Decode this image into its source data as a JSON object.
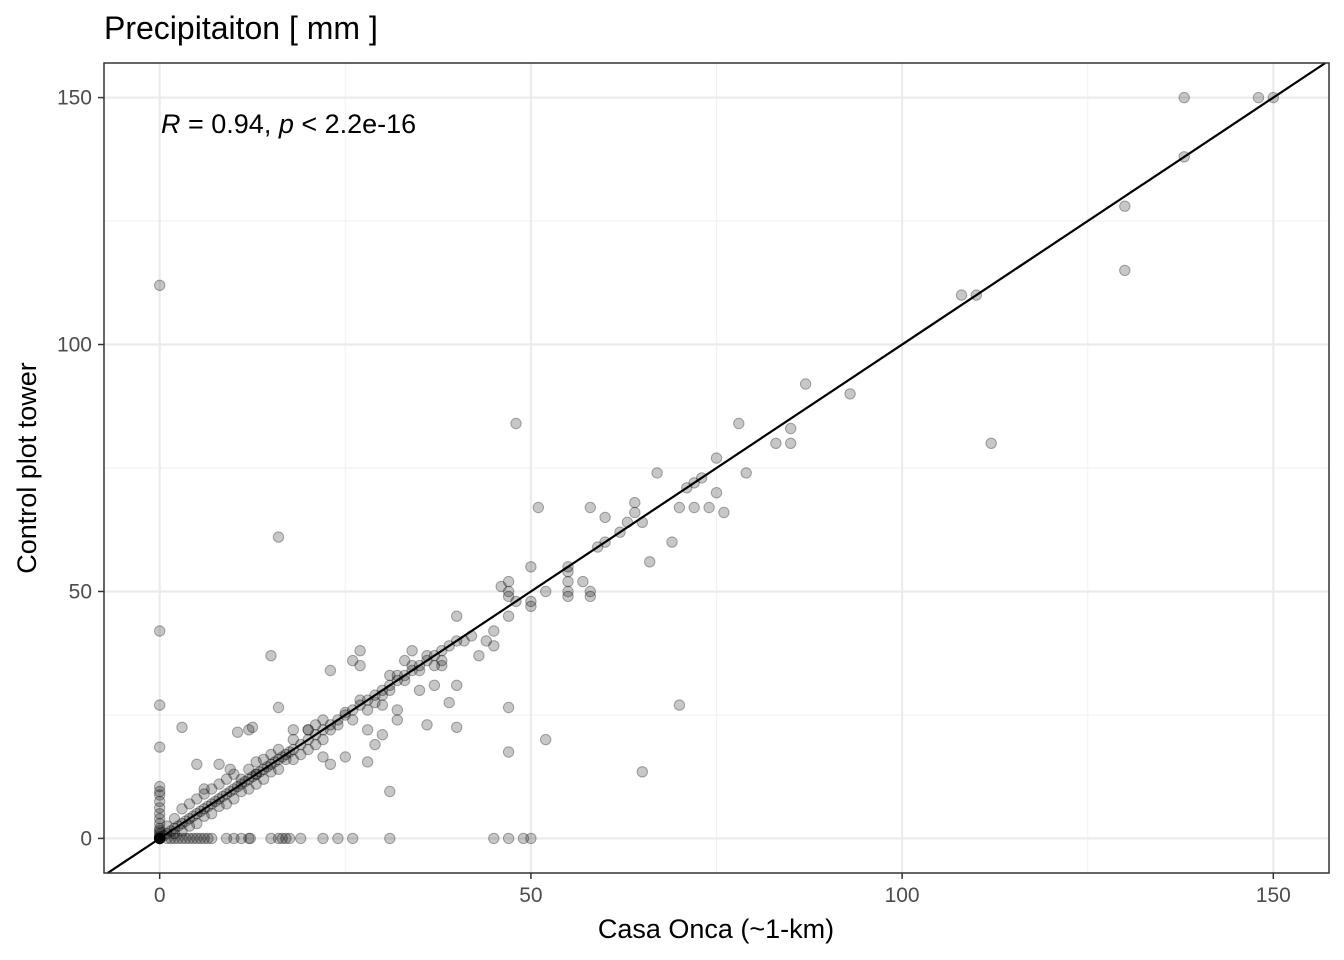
{
  "chart_data": {
    "type": "scatter",
    "title": "Precipitaiton [ mm ]",
    "xlabel": "Casa Onca (~1-km)",
    "ylabel": "Control plot tower",
    "xlim": [
      -7.5,
      157.5
    ],
    "ylim": [
      -7,
      157
    ],
    "xticks": [
      "0",
      "50",
      "100",
      "150"
    ],
    "yticks": [
      "0",
      "50",
      "100",
      "150"
    ],
    "grid": true,
    "annotation": {
      "r_symbol": "R",
      "r_value": " = 0.94, ",
      "p_symbol": "p",
      "p_value": " < 2.2e-16"
    },
    "reference_line": "y = x",
    "point_color": "#000000",
    "point_opacity": 0.22,
    "points": [
      [
        0,
        0
      ],
      [
        0,
        0
      ],
      [
        0,
        0
      ],
      [
        0,
        0
      ],
      [
        0,
        0
      ],
      [
        0,
        0
      ],
      [
        0,
        0
      ],
      [
        0,
        0
      ],
      [
        0,
        0
      ],
      [
        0,
        0
      ],
      [
        0,
        0
      ],
      [
        0,
        0
      ],
      [
        0,
        0.4
      ],
      [
        0,
        0.8
      ],
      [
        0,
        1.2
      ],
      [
        0,
        1.6
      ],
      [
        0,
        2
      ],
      [
        0,
        3
      ],
      [
        0,
        4
      ],
      [
        0,
        5
      ],
      [
        0,
        6.2
      ],
      [
        0,
        7.5
      ],
      [
        0,
        8.8
      ],
      [
        0,
        9.5
      ],
      [
        0,
        10.5
      ],
      [
        0,
        18.5
      ],
      [
        0,
        27
      ],
      [
        0,
        42
      ],
      [
        0,
        112
      ],
      [
        1,
        0
      ],
      [
        1.5,
        0
      ],
      [
        2,
        0
      ],
      [
        2.5,
        0
      ],
      [
        3,
        0
      ],
      [
        3.5,
        0
      ],
      [
        4,
        0
      ],
      [
        4.5,
        0
      ],
      [
        5,
        0
      ],
      [
        5.5,
        0
      ],
      [
        6,
        0
      ],
      [
        6.5,
        0
      ],
      [
        7,
        0
      ],
      [
        9,
        0
      ],
      [
        10,
        0
      ],
      [
        11,
        0
      ],
      [
        12,
        0
      ],
      [
        12.2,
        0
      ],
      [
        15,
        0
      ],
      [
        16,
        0
      ],
      [
        16.5,
        0
      ],
      [
        17,
        0
      ],
      [
        17.5,
        0
      ],
      [
        19,
        0
      ],
      [
        22,
        0
      ],
      [
        24,
        0
      ],
      [
        26,
        0
      ],
      [
        31,
        0
      ],
      [
        45,
        0
      ],
      [
        47,
        0
      ],
      [
        49,
        0
      ],
      [
        50,
        0
      ],
      [
        0.5,
        0.5
      ],
      [
        1,
        1
      ],
      [
        1.5,
        1.5
      ],
      [
        2,
        2
      ],
      [
        2.5,
        2.5
      ],
      [
        3,
        3
      ],
      [
        3.5,
        3.5
      ],
      [
        4,
        4
      ],
      [
        4.5,
        4.5
      ],
      [
        5,
        5
      ],
      [
        5.5,
        5.5
      ],
      [
        6,
        6
      ],
      [
        6.5,
        6.5
      ],
      [
        7,
        7
      ],
      [
        7.5,
        7.5
      ],
      [
        8,
        8
      ],
      [
        8.5,
        8.5
      ],
      [
        9,
        9
      ],
      [
        9.5,
        9.5
      ],
      [
        10,
        10
      ],
      [
        10.5,
        10.5
      ],
      [
        11,
        11
      ],
      [
        11.5,
        11.5
      ],
      [
        12,
        12
      ],
      [
        12.5,
        12.5
      ],
      [
        13,
        13
      ],
      [
        13.5,
        13.5
      ],
      [
        14,
        14
      ],
      [
        14.5,
        14.5
      ],
      [
        15,
        15
      ],
      [
        15.5,
        15.5
      ],
      [
        16,
        16
      ],
      [
        16.5,
        16.5
      ],
      [
        17,
        17
      ],
      [
        17.5,
        17.5
      ],
      [
        18,
        18
      ],
      [
        19,
        19
      ],
      [
        20,
        20
      ],
      [
        21,
        21
      ],
      [
        22,
        22
      ],
      [
        23,
        23
      ],
      [
        24,
        24
      ],
      [
        25,
        25
      ],
      [
        26,
        26
      ],
      [
        27,
        27
      ],
      [
        28,
        28
      ],
      [
        29,
        29
      ],
      [
        30,
        30
      ],
      [
        31,
        31
      ],
      [
        32,
        32
      ],
      [
        33,
        33
      ],
      [
        34,
        34
      ],
      [
        35,
        35
      ],
      [
        36,
        36
      ],
      [
        37,
        37
      ],
      [
        38,
        38
      ],
      [
        39,
        39
      ],
      [
        40,
        40
      ],
      [
        1,
        2.5
      ],
      [
        2,
        1
      ],
      [
        2,
        4
      ],
      [
        3,
        1.5
      ],
      [
        3,
        6
      ],
      [
        4,
        2.5
      ],
      [
        4,
        7
      ],
      [
        5,
        3
      ],
      [
        5,
        8
      ],
      [
        6,
        4.5
      ],
      [
        6,
        9
      ],
      [
        7,
        5
      ],
      [
        7,
        10
      ],
      [
        8,
        6.5
      ],
      [
        8,
        11
      ],
      [
        9,
        7
      ],
      [
        9,
        12
      ],
      [
        10,
        8
      ],
      [
        10,
        13
      ],
      [
        11,
        9.5
      ],
      [
        11,
        12
      ],
      [
        12,
        10
      ],
      [
        12,
        14
      ],
      [
        13,
        11
      ],
      [
        13,
        15.5
      ],
      [
        14,
        12
      ],
      [
        14,
        16
      ],
      [
        15,
        13.5
      ],
      [
        15,
        17
      ],
      [
        16,
        14
      ],
      [
        16,
        18
      ],
      [
        17,
        16
      ],
      [
        18,
        16
      ],
      [
        18,
        20
      ],
      [
        19,
        17
      ],
      [
        20,
        18
      ],
      [
        20,
        22
      ],
      [
        21,
        19
      ],
      [
        21,
        23
      ],
      [
        22,
        20
      ],
      [
        22,
        24
      ],
      [
        23,
        22
      ],
      [
        24,
        23
      ],
      [
        25,
        25.5
      ],
      [
        26,
        24
      ],
      [
        27,
        28
      ],
      [
        28,
        26
      ],
      [
        29,
        27.5
      ],
      [
        30,
        29
      ],
      [
        31,
        30
      ],
      [
        32,
        33
      ],
      [
        33,
        32
      ],
      [
        34,
        35
      ],
      [
        35,
        34
      ],
      [
        36,
        37
      ],
      [
        37,
        35
      ],
      [
        38,
        36
      ],
      [
        3,
        22.5
      ],
      [
        5,
        15
      ],
      [
        6,
        10
      ],
      [
        8,
        15
      ],
      [
        9.5,
        14
      ],
      [
        10.5,
        21.5
      ],
      [
        12,
        22
      ],
      [
        12.5,
        22.5
      ],
      [
        13,
        13
      ],
      [
        15,
        37
      ],
      [
        16,
        61
      ],
      [
        16,
        26.5
      ],
      [
        18,
        22
      ],
      [
        20,
        22
      ],
      [
        22,
        16.5
      ],
      [
        23,
        15
      ],
      [
        23,
        34
      ],
      [
        25,
        16.5
      ],
      [
        26,
        36
      ],
      [
        27,
        35
      ],
      [
        27,
        38
      ],
      [
        28,
        22
      ],
      [
        28,
        15.5
      ],
      [
        29,
        19
      ],
      [
        30,
        21
      ],
      [
        30,
        27
      ],
      [
        31,
        33
      ],
      [
        31,
        9.5
      ],
      [
        32,
        26
      ],
      [
        32,
        24
      ],
      [
        33,
        36
      ],
      [
        34,
        38
      ],
      [
        35,
        30
      ],
      [
        36,
        23
      ],
      [
        37,
        31
      ],
      [
        38,
        35
      ],
      [
        39,
        27.5
      ],
      [
        40,
        22.5
      ],
      [
        40,
        31
      ],
      [
        40,
        45
      ],
      [
        41,
        40
      ],
      [
        42,
        41
      ],
      [
        43,
        37
      ],
      [
        44,
        40
      ],
      [
        45,
        42
      ],
      [
        45,
        39
      ],
      [
        46,
        51
      ],
      [
        47,
        50
      ],
      [
        47,
        52
      ],
      [
        47,
        45
      ],
      [
        47,
        49
      ],
      [
        47,
        26.5
      ],
      [
        47,
        17.5
      ],
      [
        48,
        48
      ],
      [
        48,
        84
      ],
      [
        50,
        47
      ],
      [
        50,
        48
      ],
      [
        50,
        55
      ],
      [
        51,
        67
      ],
      [
        52,
        50
      ],
      [
        52,
        20
      ],
      [
        55,
        49
      ],
      [
        55,
        50
      ],
      [
        55,
        52
      ],
      [
        55,
        54
      ],
      [
        55,
        55
      ],
      [
        57,
        52
      ],
      [
        58,
        49
      ],
      [
        58,
        50
      ],
      [
        58,
        67
      ],
      [
        59,
        59
      ],
      [
        60,
        60
      ],
      [
        60,
        65
      ],
      [
        62,
        62
      ],
      [
        63,
        64
      ],
      [
        64,
        66
      ],
      [
        64,
        68
      ],
      [
        65,
        64
      ],
      [
        65,
        13.5
      ],
      [
        66,
        56
      ],
      [
        67,
        74
      ],
      [
        69,
        60
      ],
      [
        70,
        27
      ],
      [
        70,
        67
      ],
      [
        71,
        71
      ],
      [
        72,
        72
      ],
      [
        72,
        67
      ],
      [
        73,
        73
      ],
      [
        74,
        67
      ],
      [
        75,
        70
      ],
      [
        75,
        77
      ],
      [
        76,
        66
      ],
      [
        78,
        84
      ],
      [
        79,
        74
      ],
      [
        83,
        80
      ],
      [
        85,
        80
      ],
      [
        85,
        83
      ],
      [
        87,
        92
      ],
      [
        93,
        90
      ],
      [
        108,
        110
      ],
      [
        110,
        110
      ],
      [
        112,
        80
      ],
      [
        130,
        115
      ],
      [
        130,
        128
      ],
      [
        138,
        150
      ],
      [
        138,
        138
      ],
      [
        148,
        150
      ],
      [
        150,
        150
      ]
    ]
  }
}
